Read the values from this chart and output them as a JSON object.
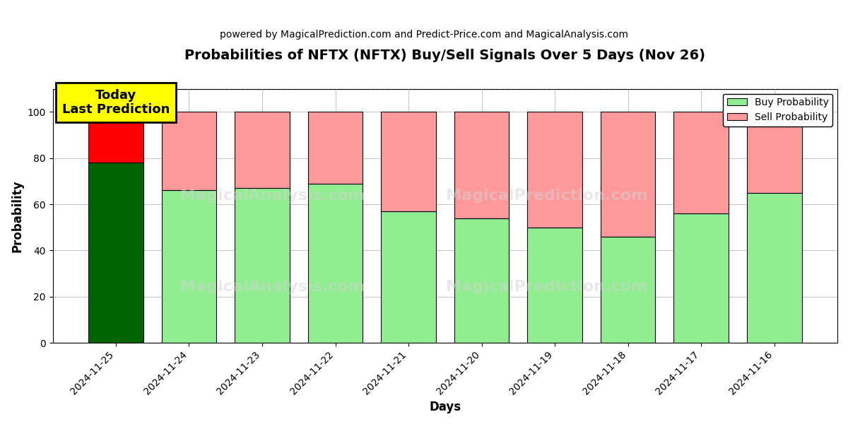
{
  "title": "Probabilities of NFTX (NFTX) Buy/Sell Signals Over 5 Days (Nov 26)",
  "subtitle": "powered by MagicalPrediction.com and Predict-Price.com and MagicalAnalysis.com",
  "xlabel": "Days",
  "ylabel": "Probability",
  "dates": [
    "2024-11-25",
    "2024-11-24",
    "2024-11-23",
    "2024-11-22",
    "2024-11-21",
    "2024-11-20",
    "2024-11-19",
    "2024-11-18",
    "2024-11-17",
    "2024-11-16"
  ],
  "buy_values": [
    78,
    66,
    67,
    69,
    57,
    54,
    50,
    46,
    56,
    65
  ],
  "sell_values": [
    22,
    34,
    33,
    31,
    43,
    46,
    50,
    54,
    44,
    35
  ],
  "today_buy_color": "#006400",
  "today_sell_color": "#FF0000",
  "buy_color": "#90EE90",
  "sell_color": "#FF9999",
  "today_annotation": "Today\nLast Prediction",
  "ylim": [
    0,
    110
  ],
  "yticks": [
    0,
    20,
    40,
    60,
    80,
    100
  ],
  "dashed_line_y": 110,
  "background_color": "#ffffff",
  "grid_color": "#aaaaaa",
  "legend_buy_label": "Buy Probability",
  "legend_sell_label": "Sell Probability",
  "bar_width": 0.75,
  "title_fontsize": 14,
  "subtitle_fontsize": 10,
  "annotation_fontsize": 13
}
